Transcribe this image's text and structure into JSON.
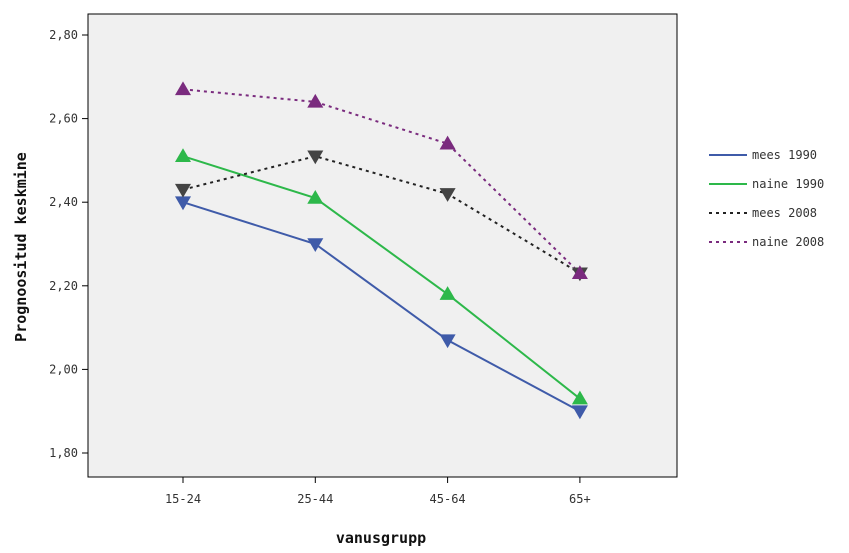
{
  "chart_data": {
    "type": "line",
    "xlabel": "vanusgrupp",
    "ylabel": "Prognoositud keskmine",
    "categories": [
      "15-24",
      "25-44",
      "45-64",
      "65+"
    ],
    "ylim": [
      1.75,
      2.85
    ],
    "yticks": [
      "1,80",
      "2,00",
      "2,20",
      "2,40",
      "2,60",
      "2,80"
    ],
    "ytick_values": [
      1.8,
      2.0,
      2.2,
      2.4,
      2.6,
      2.8
    ],
    "plot_background": "#f0f0f0",
    "legend_position": "right",
    "series": [
      {
        "name": "mees 1990",
        "values": [
          2.4,
          2.3,
          2.07,
          1.9
        ],
        "color": "#3f5ba9",
        "dash": "solid",
        "marker": "triangle-down"
      },
      {
        "name": "naine 1990",
        "values": [
          2.51,
          2.41,
          2.18,
          1.93
        ],
        "color": "#2db84a",
        "dash": "solid",
        "marker": "triangle-up"
      },
      {
        "name": "mees 2008",
        "values": [
          2.43,
          2.51,
          2.42,
          2.23
        ],
        "color": "#222222",
        "dash": "dotted",
        "marker": "triangle-down",
        "marker_color": "#444444"
      },
      {
        "name": "naine 2008",
        "values": [
          2.67,
          2.64,
          2.54,
          2.23
        ],
        "color": "#7a2b7e",
        "dash": "dotted",
        "marker": "triangle-up"
      }
    ]
  }
}
